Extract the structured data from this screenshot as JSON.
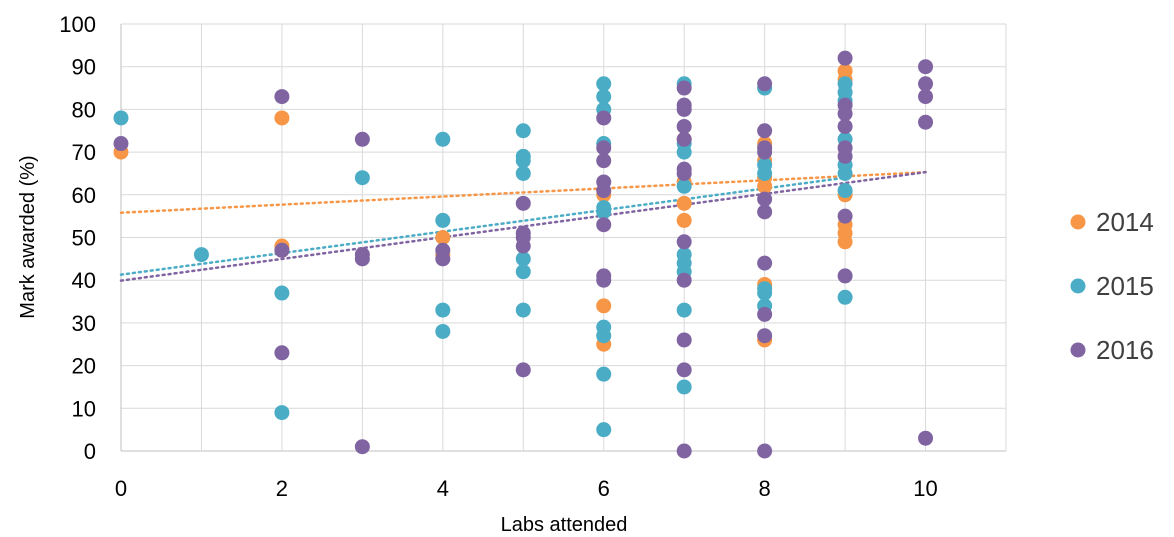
{
  "chart_data": {
    "type": "scatter",
    "xlabel": "Labs attended",
    "ylabel": "Mark awarded (%)",
    "xlim": [
      0,
      11
    ],
    "ylim": [
      0,
      100
    ],
    "x_ticks": [
      0,
      2,
      4,
      6,
      8,
      10
    ],
    "y_ticks": [
      0,
      10,
      20,
      30,
      40,
      50,
      60,
      70,
      80,
      90,
      100
    ],
    "grid": "vertical and horizontal major gridlines",
    "legend_position": "right",
    "series": [
      {
        "name": "2014",
        "color": "#F79646",
        "points": [
          [
            0,
            70
          ],
          [
            2,
            78
          ],
          [
            2,
            48
          ],
          [
            2,
            47
          ],
          [
            4,
            50
          ],
          [
            4,
            46
          ],
          [
            6,
            34
          ],
          [
            6,
            25
          ],
          [
            6,
            60
          ],
          [
            7,
            73
          ],
          [
            7,
            54
          ],
          [
            7,
            58
          ],
          [
            7,
            63
          ],
          [
            8,
            72
          ],
          [
            8,
            68
          ],
          [
            8,
            64
          ],
          [
            8,
            62
          ],
          [
            8,
            39
          ],
          [
            8,
            26
          ],
          [
            9,
            89
          ],
          [
            9,
            87
          ],
          [
            9,
            60
          ],
          [
            9,
            53
          ],
          [
            9,
            51
          ],
          [
            9,
            49
          ]
        ],
        "trendline": [
          [
            0,
            55.8
          ],
          [
            10,
            65.3
          ]
        ]
      },
      {
        "name": "2015",
        "color": "#4BACC6",
        "points": [
          [
            0,
            78
          ],
          [
            1,
            46
          ],
          [
            2,
            37
          ],
          [
            2,
            9
          ],
          [
            3,
            64
          ],
          [
            4,
            73
          ],
          [
            4,
            54
          ],
          [
            4,
            33
          ],
          [
            4,
            28
          ],
          [
            5,
            75
          ],
          [
            5,
            69
          ],
          [
            5,
            68
          ],
          [
            5,
            65
          ],
          [
            5,
            45
          ],
          [
            5,
            42
          ],
          [
            5,
            33
          ],
          [
            6,
            86
          ],
          [
            6,
            83
          ],
          [
            6,
            80
          ],
          [
            6,
            72
          ],
          [
            6,
            57
          ],
          [
            6,
            56
          ],
          [
            6,
            29
          ],
          [
            6,
            27
          ],
          [
            6,
            18
          ],
          [
            6,
            5
          ],
          [
            7,
            86
          ],
          [
            7,
            72
          ],
          [
            7,
            70
          ],
          [
            7,
            62
          ],
          [
            7,
            46
          ],
          [
            7,
            44
          ],
          [
            7,
            42
          ],
          [
            7,
            33
          ],
          [
            7,
            15
          ],
          [
            8,
            85
          ],
          [
            8,
            67
          ],
          [
            8,
            65
          ],
          [
            8,
            38
          ],
          [
            8,
            37
          ],
          [
            8,
            34
          ],
          [
            9,
            86
          ],
          [
            9,
            84
          ],
          [
            9,
            82
          ],
          [
            9,
            73
          ],
          [
            9,
            67
          ],
          [
            9,
            65
          ],
          [
            9,
            61
          ],
          [
            9,
            36
          ]
        ],
        "trendline": [
          [
            0,
            41.3
          ],
          [
            9,
            64
          ]
        ]
      },
      {
        "name": "2016",
        "color": "#8064A2",
        "points": [
          [
            0,
            72
          ],
          [
            2,
            83
          ],
          [
            2,
            47
          ],
          [
            2,
            23
          ],
          [
            3,
            73
          ],
          [
            3,
            46
          ],
          [
            3,
            45
          ],
          [
            3,
            1
          ],
          [
            4,
            47
          ],
          [
            4,
            45
          ],
          [
            5,
            58
          ],
          [
            5,
            51
          ],
          [
            5,
            50
          ],
          [
            5,
            48
          ],
          [
            5,
            19
          ],
          [
            6,
            78
          ],
          [
            6,
            71
          ],
          [
            6,
            68
          ],
          [
            6,
            63
          ],
          [
            6,
            61
          ],
          [
            6,
            53
          ],
          [
            6,
            41
          ],
          [
            6,
            40
          ],
          [
            7,
            85
          ],
          [
            7,
            81
          ],
          [
            7,
            80
          ],
          [
            7,
            76
          ],
          [
            7,
            73
          ],
          [
            7,
            66
          ],
          [
            7,
            65
          ],
          [
            7,
            49
          ],
          [
            7,
            40
          ],
          [
            7,
            26
          ],
          [
            7,
            19
          ],
          [
            7,
            0
          ],
          [
            8,
            86
          ],
          [
            8,
            75
          ],
          [
            8,
            71
          ],
          [
            8,
            70
          ],
          [
            8,
            59
          ],
          [
            8,
            56
          ],
          [
            8,
            44
          ],
          [
            8,
            32
          ],
          [
            8,
            27
          ],
          [
            8,
            0
          ],
          [
            9,
            92
          ],
          [
            9,
            81
          ],
          [
            9,
            79
          ],
          [
            9,
            76
          ],
          [
            9,
            71
          ],
          [
            9,
            69
          ],
          [
            9,
            55
          ],
          [
            9,
            41
          ],
          [
            10,
            90
          ],
          [
            10,
            86
          ],
          [
            10,
            83
          ],
          [
            10,
            77
          ],
          [
            10,
            3
          ]
        ],
        "trendline": [
          [
            0,
            39.9
          ],
          [
            10,
            65.3
          ]
        ]
      }
    ]
  }
}
